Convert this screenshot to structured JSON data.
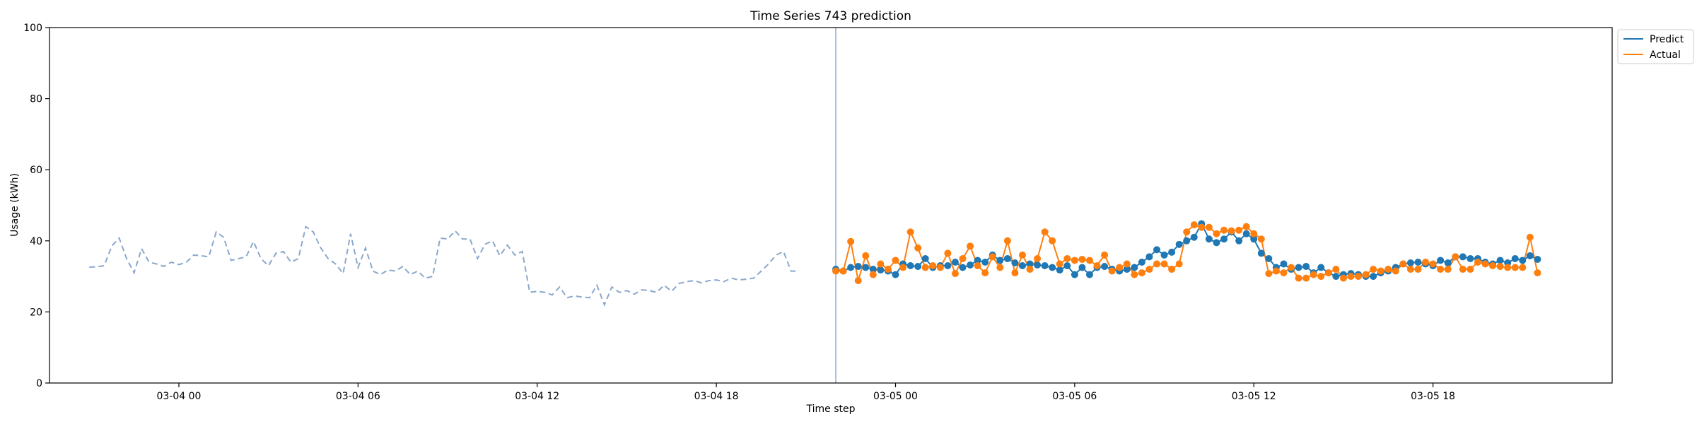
{
  "chart_data": {
    "type": "line",
    "title": "Time Series 743 prediction",
    "xlabel": "Time step",
    "ylabel": "Usage (kWh)",
    "ylim": [
      0,
      100
    ],
    "yticks": [
      0,
      20,
      40,
      60,
      80,
      100
    ],
    "xlim": [
      "03-03 19:40",
      "03-06 00:00"
    ],
    "xticks": [
      {
        "label": "03-04 00",
        "t": "03-04 00:00"
      },
      {
        "label": "03-04 06",
        "t": "03-04 06:00"
      },
      {
        "label": "03-04 12",
        "t": "03-04 12:00"
      },
      {
        "label": "03-04 18",
        "t": "03-04 18:00"
      },
      {
        "label": "03-05 00",
        "t": "03-05 00:00"
      },
      {
        "label": "03-05 06",
        "t": "03-05 06:00"
      },
      {
        "label": "03-05 12",
        "t": "03-05 12:00"
      },
      {
        "label": "03-05 18",
        "t": "03-05 18:00"
      }
    ],
    "split_time": "03-04 22:00",
    "legend": {
      "placement": "outside-top-right"
    },
    "colors": {
      "predict": "#1f77b4",
      "actual": "#ff7f0e",
      "history": "#8aa8cc",
      "split_line": "#8aa8cc"
    },
    "history": {
      "start": "03-03 21:00",
      "step_minutes": 15,
      "values": [
        32.6,
        32.7,
        33.0,
        38.5,
        40.8,
        35.0,
        31.0,
        37.8,
        34.0,
        33.5,
        32.8,
        34.0,
        33.3,
        34.0,
        36.0,
        35.8,
        35.5,
        42.5,
        41.0,
        34.5,
        35.0,
        35.5,
        39.8,
        35.0,
        33.0,
        36.5,
        37.0,
        34.0,
        35.0,
        44.0,
        42.5,
        38.0,
        35.0,
        33.5,
        30.8,
        42.0,
        32.5,
        38.0,
        31.5,
        30.5,
        31.8,
        31.5,
        32.8,
        30.5,
        31.5,
        29.5,
        30.0,
        40.8,
        40.5,
        42.8,
        40.5,
        40.5,
        35.0,
        39.0,
        40.0,
        35.8,
        38.8,
        36.0,
        37.0,
        25.5,
        25.8,
        25.5,
        24.8,
        27.0,
        24.0,
        24.5,
        24.2,
        24.0,
        27.5,
        22.0,
        27.0,
        25.5,
        26.0,
        25.0,
        26.2,
        26.0,
        25.5,
        27.5,
        25.8,
        28.0,
        28.5,
        28.8,
        28.2,
        28.8,
        29.0,
        28.5,
        29.5,
        29.0,
        29.2,
        29.5,
        31.5,
        33.5,
        36.0,
        37.0,
        31.5,
        31.5
      ]
    },
    "series": [
      {
        "name": "Predict",
        "start": "03-04 22:00",
        "step_minutes": 15,
        "values": [
          32.0,
          31.5,
          32.5,
          32.8,
          32.5,
          32.0,
          31.8,
          31.5,
          30.5,
          33.5,
          33.0,
          32.8,
          35.0,
          32.5,
          33.0,
          33.0,
          34.0,
          32.5,
          33.2,
          34.5,
          34.0,
          36.0,
          34.5,
          35.0,
          33.8,
          33.0,
          33.5,
          33.2,
          33.0,
          32.5,
          31.8,
          33.0,
          30.5,
          32.5,
          30.5,
          32.5,
          32.8,
          32.0,
          31.5,
          32.0,
          32.5,
          34.0,
          35.5,
          37.5,
          36.0,
          36.8,
          39.0,
          40.0,
          41.0,
          44.8,
          40.5,
          39.5,
          40.5,
          42.5,
          40.0,
          42.0,
          40.5,
          36.5,
          35.0,
          32.5,
          33.5,
          32.0,
          32.5,
          32.8,
          31.0,
          32.5,
          31.0,
          30.0,
          30.5,
          30.8,
          30.5,
          30.0,
          30.0,
          31.0,
          31.5,
          32.5,
          33.5,
          33.8,
          34.0,
          33.5,
          33.0,
          34.5,
          33.8,
          35.5,
          35.5,
          35.0,
          35.0,
          34.0,
          33.5,
          34.5,
          33.8,
          35.0,
          34.5,
          35.8,
          34.8
        ]
      },
      {
        "name": "Actual",
        "start": "03-04 22:00",
        "step_minutes": 15,
        "values": [
          31.5,
          31.5,
          39.8,
          28.8,
          35.8,
          30.5,
          33.5,
          32.0,
          34.5,
          32.5,
          42.5,
          38.0,
          32.5,
          33.0,
          32.5,
          36.5,
          30.8,
          35.0,
          38.5,
          33.0,
          31.0,
          35.5,
          32.5,
          40.0,
          31.0,
          36.0,
          32.0,
          35.0,
          42.5,
          40.0,
          33.5,
          35.0,
          34.5,
          34.8,
          34.5,
          33.0,
          36.0,
          31.5,
          32.5,
          33.5,
          30.5,
          31.0,
          32.0,
          33.5,
          33.5,
          32.0,
          33.5,
          42.5,
          44.5,
          43.8,
          43.8,
          42.0,
          43.0,
          42.8,
          43.0,
          44.0,
          42.0,
          40.5,
          30.8,
          31.5,
          31.0,
          32.5,
          29.5,
          29.5,
          30.5,
          30.0,
          31.0,
          32.0,
          29.5,
          30.0,
          30.0,
          30.5,
          32.0,
          31.5,
          32.0,
          31.5,
          33.5,
          32.0,
          32.0,
          34.0,
          33.5,
          32.0,
          32.0,
          35.5,
          32.0,
          32.0,
          34.0,
          33.5,
          33.0,
          32.8,
          32.5,
          32.5,
          32.5,
          41.0,
          31.0
        ]
      }
    ]
  }
}
